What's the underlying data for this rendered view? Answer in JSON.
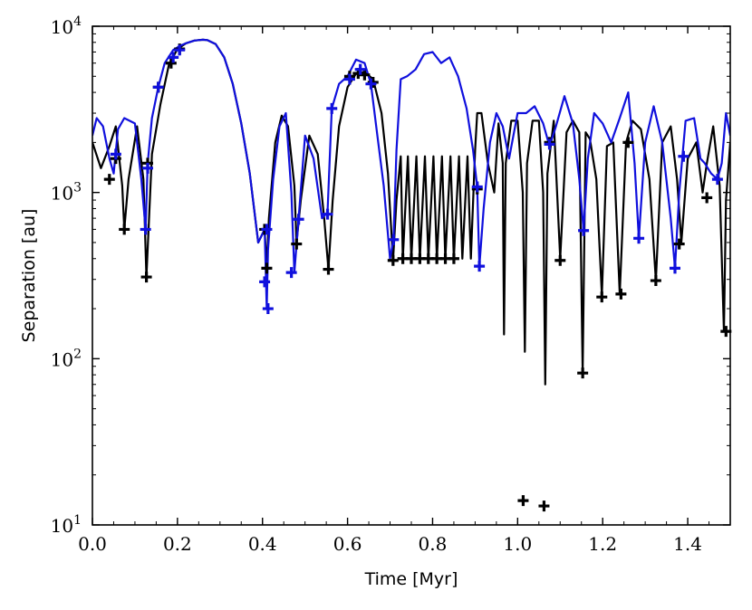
{
  "chart_data": {
    "type": "line",
    "title": "",
    "xlabel": "Time [Myr]",
    "ylabel": "Separation [au]",
    "xlim": [
      0.0,
      1.5
    ],
    "ylim": [
      10,
      10000
    ],
    "yscale": "log",
    "xticks": [
      0.0,
      0.2,
      0.4,
      0.6,
      0.8,
      1.0,
      1.2,
      1.4
    ],
    "xtick_labels": [
      "0.0",
      "0.2",
      "0.4",
      "0.6",
      "0.8",
      "1.0",
      "1.2",
      "1.4"
    ],
    "yticks": [
      10,
      100,
      1000,
      10000
    ],
    "ytick_labels": [
      {
        "base": "10",
        "exp": "1"
      },
      {
        "base": "10",
        "exp": "2"
      },
      {
        "base": "10",
        "exp": "3"
      },
      {
        "base": "10",
        "exp": "4"
      }
    ],
    "grid": false,
    "series": [
      {
        "name": "black",
        "color": "#000000",
        "x": [
          0.0,
          0.02,
          0.04,
          0.055,
          0.07,
          0.075,
          0.085,
          0.105,
          0.12,
          0.127,
          0.14,
          0.16,
          0.18,
          0.2,
          0.22,
          0.24,
          0.26,
          0.27,
          0.29,
          0.31,
          0.33,
          0.35,
          0.37,
          0.39,
          0.405,
          0.41,
          0.415,
          0.43,
          0.445,
          0.46,
          0.475,
          0.48,
          0.49,
          0.51,
          0.53,
          0.545,
          0.555,
          0.565,
          0.58,
          0.6,
          0.62,
          0.64,
          0.66,
          0.68,
          0.695,
          0.707,
          0.715,
          0.725,
          0.73,
          0.742,
          0.75,
          0.762,
          0.77,
          0.782,
          0.79,
          0.802,
          0.81,
          0.822,
          0.83,
          0.842,
          0.85,
          0.862,
          0.87,
          0.882,
          0.89,
          0.9,
          0.905,
          0.915,
          0.93,
          0.945,
          0.955,
          0.965,
          0.968,
          0.972,
          0.985,
          1.0,
          1.012,
          1.017,
          1.022,
          1.035,
          1.05,
          1.06,
          1.065,
          1.07,
          1.085,
          1.1,
          1.115,
          1.13,
          1.145,
          1.153,
          1.16,
          1.17,
          1.185,
          1.198,
          1.21,
          1.225,
          1.24,
          1.255,
          1.27,
          1.29,
          1.31,
          1.325,
          1.34,
          1.36,
          1.375,
          1.385,
          1.4,
          1.42,
          1.435,
          1.445,
          1.46,
          1.475,
          1.485,
          1.49,
          1.5
        ],
        "y": [
          2000,
          1400,
          1900,
          2500,
          1100,
          600,
          1200,
          2500,
          1200,
          310,
          1700,
          3400,
          5900,
          7300,
          7900,
          8200,
          8300,
          8250,
          7800,
          6500,
          4500,
          2600,
          1300,
          500,
          600,
          350,
          700,
          2000,
          2900,
          2500,
          1100,
          500,
          900,
          2200,
          1700,
          700,
          345,
          900,
          2500,
          4300,
          5200,
          5300,
          4800,
          3000,
          1300,
          390,
          900,
          1650,
          400,
          1650,
          400,
          1650,
          400,
          1650,
          400,
          1650,
          400,
          1650,
          400,
          1650,
          400,
          1650,
          400,
          1650,
          400,
          1800,
          3000,
          3000,
          1500,
          1000,
          2600,
          1500,
          140,
          1500,
          2700,
          2700,
          1000,
          110,
          1500,
          2700,
          2700,
          1000,
          70,
          1300,
          2700,
          400,
          2300,
          2700,
          2300,
          82,
          2300,
          2100,
          1200,
          240,
          1900,
          2000,
          245,
          2000,
          2700,
          2400,
          1200,
          295,
          2000,
          2500,
          1200,
          500,
          1600,
          2000,
          1000,
          1500,
          2500,
          1100,
          146,
          900,
          2000
        ]
      },
      {
        "name": "blue",
        "color": "#1010dd",
        "x": [
          0.0,
          0.01,
          0.025,
          0.04,
          0.05,
          0.06,
          0.075,
          0.1,
          0.115,
          0.125,
          0.13,
          0.14,
          0.155,
          0.17,
          0.19,
          0.205,
          0.22,
          0.24,
          0.26,
          0.27,
          0.29,
          0.31,
          0.33,
          0.35,
          0.37,
          0.39,
          0.405,
          0.41,
          0.413,
          0.425,
          0.44,
          0.455,
          0.468,
          0.475,
          0.485,
          0.5,
          0.52,
          0.54,
          0.553,
          0.563,
          0.58,
          0.6,
          0.62,
          0.64,
          0.655,
          0.67,
          0.685,
          0.7,
          0.708,
          0.715,
          0.725,
          0.74,
          0.76,
          0.78,
          0.8,
          0.82,
          0.84,
          0.86,
          0.88,
          0.895,
          0.905,
          0.91,
          0.92,
          0.935,
          0.95,
          0.965,
          0.98,
          1.0,
          1.02,
          1.04,
          1.06,
          1.075,
          1.09,
          1.11,
          1.13,
          1.145,
          1.155,
          1.165,
          1.18,
          1.2,
          1.22,
          1.24,
          1.26,
          1.275,
          1.285,
          1.3,
          1.32,
          1.34,
          1.36,
          1.37,
          1.38,
          1.395,
          1.415,
          1.43,
          1.44,
          1.455,
          1.47,
          1.48,
          1.49,
          1.5
        ],
        "y": [
          2200,
          2800,
          2500,
          1600,
          1300,
          2400,
          2800,
          2600,
          1200,
          600,
          1500,
          2800,
          4300,
          6000,
          7200,
          7600,
          7900,
          8200,
          8300,
          8250,
          7800,
          6500,
          4500,
          2600,
          1300,
          500,
          600,
          200,
          450,
          1200,
          2500,
          3000,
          1000,
          330,
          700,
          2200,
          1600,
          700,
          760,
          3200,
          4500,
          5000,
          6300,
          6000,
          4500,
          2200,
          1100,
          400,
          520,
          1800,
          4800,
          5000,
          5500,
          6800,
          7000,
          6000,
          6500,
          5000,
          3200,
          1800,
          1080,
          360,
          800,
          2000,
          3000,
          2500,
          1600,
          3000,
          3000,
          3300,
          2600,
          1900,
          2500,
          3800,
          2600,
          1200,
          590,
          1600,
          3000,
          2600,
          2000,
          2800,
          4000,
          1500,
          530,
          2000,
          3300,
          2000,
          700,
          350,
          1000,
          2700,
          2800,
          1600,
          1500,
          1300,
          1200,
          1500,
          3000,
          2200
        ]
      }
    ],
    "markers": [
      {
        "series": "black",
        "symbol": "+",
        "color": "#000000",
        "x": [
          0.04,
          0.055,
          0.075,
          0.127,
          0.13,
          0.155,
          0.185,
          0.205,
          0.405,
          0.41,
          0.48,
          0.555,
          0.605,
          0.625,
          0.64,
          0.66,
          0.707,
          0.73,
          0.75,
          0.77,
          0.79,
          0.81,
          0.83,
          0.85,
          0.905,
          1.013,
          1.062,
          1.075,
          1.1,
          1.153,
          1.198,
          1.243,
          1.26,
          1.325,
          1.38,
          1.445,
          1.49
        ],
        "y": [
          1200,
          1600,
          600,
          310,
          1500,
          4300,
          6000,
          7300,
          600,
          350,
          490,
          345,
          5000,
          5200,
          5100,
          4600,
          390,
          400,
          400,
          400,
          400,
          400,
          400,
          400,
          1050,
          14,
          13,
          2000,
          390,
          82,
          235,
          245,
          2000,
          295,
          490,
          930,
          146
        ]
      },
      {
        "series": "blue",
        "symbol": "+",
        "color": "#1010dd",
        "x": [
          0.055,
          0.125,
          0.13,
          0.155,
          0.19,
          0.205,
          0.405,
          0.41,
          0.413,
          0.468,
          0.485,
          0.553,
          0.563,
          0.605,
          0.63,
          0.655,
          0.708,
          0.905,
          0.91,
          1.075,
          1.155,
          1.285,
          1.37,
          1.39,
          1.47
        ],
        "y": [
          1700,
          600,
          1400,
          4300,
          6500,
          7200,
          290,
          600,
          200,
          330,
          690,
          740,
          3200,
          4800,
          5500,
          4500,
          520,
          1080,
          360,
          1950,
          590,
          530,
          350,
          1650,
          1200
        ]
      }
    ]
  }
}
